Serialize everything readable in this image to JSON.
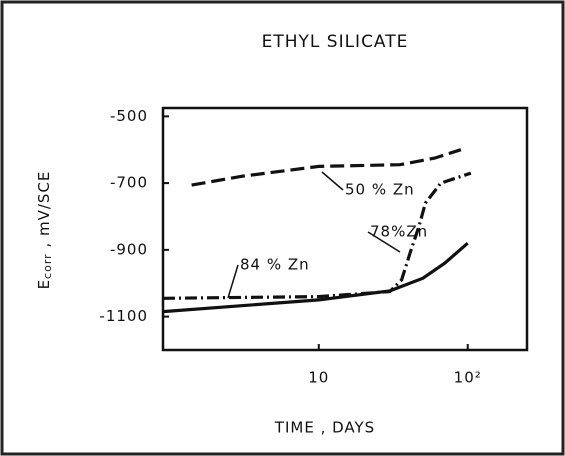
{
  "chart_data": {
    "type": "line",
    "title": "ETHYL  SILICATE",
    "xlabel": "TIME , DAYS",
    "ylabel": {
      "main": "E",
      "sub": "corr",
      "unit": " , mV/SCE"
    },
    "xscale": "log",
    "xlim": [
      0.9,
      250
    ],
    "xticks": [
      10,
      {
        "value": 100,
        "label": "10²"
      }
    ],
    "ylim": [
      -1200,
      -475
    ],
    "yticks": [
      -500,
      -700,
      -900,
      -1100
    ],
    "grid": false,
    "series": [
      {
        "name": "50 % Zn",
        "color": "#111111",
        "dash": "dashed",
        "x": [
          1.4,
          3,
          10,
          35,
          60,
          90
        ],
        "values": [
          -706,
          -680,
          -650,
          -645,
          -625,
          -600
        ]
      },
      {
        "name": "78%Zn",
        "color": "#111111",
        "dash": "dashdot",
        "x": [
          0.9,
          10,
          30,
          36,
          41,
          47,
          52,
          66,
          105
        ],
        "values": [
          -1045,
          -1040,
          -1025,
          -990,
          -910,
          -830,
          -760,
          -700,
          -670
        ]
      },
      {
        "name": "84 % Zn",
        "color": "#111111",
        "dash": "solid",
        "x": [
          0.9,
          10,
          30,
          50,
          70,
          100
        ],
        "values": [
          -1085,
          -1050,
          -1023,
          -985,
          -940,
          -880
        ]
      }
    ]
  }
}
